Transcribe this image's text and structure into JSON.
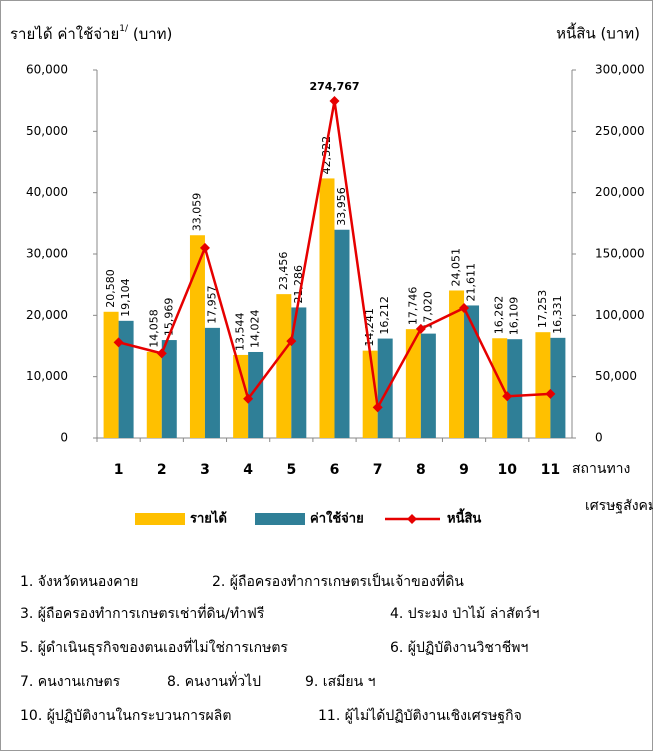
{
  "chart_data": {
    "type": "bar",
    "y_label": "รายได้ ค่าใช้จ่าย",
    "y_label_note": "1/",
    "y_label_unit": "(บาท)",
    "y2_label": "หนี้สิน (บาท)",
    "x_label": [
      "สถานทาง",
      "เศรษฐสังคม"
    ],
    "categories": [
      "1",
      "2",
      "3",
      "4",
      "5",
      "6",
      "7",
      "8",
      "9",
      "10",
      "11"
    ],
    "series": [
      {
        "name": "รายได้",
        "color": "#ffc000",
        "label_color": "#b0642a",
        "values": [
          20580,
          14058,
          33059,
          13544,
          23456,
          42322,
          14241,
          17746,
          24051,
          16262,
          17253
        ],
        "value_labels": [
          "20,580",
          "14,058",
          "33,059",
          "13,544",
          "23,456",
          "42,322",
          "14,241",
          "17,746",
          "24,051",
          "16,262",
          "17,253"
        ]
      },
      {
        "name": "ค่าใช้จ่าย",
        "color": "#2f7f97",
        "label_color": "#2f7f97",
        "values": [
          19104,
          15969,
          17957,
          14024,
          21286,
          33956,
          16212,
          17020,
          21611,
          16109,
          16331
        ],
        "value_labels": [
          "19,104",
          "15,969",
          "17,957",
          "14,024",
          "21,286",
          "33,956",
          "16,212",
          "17,020",
          "21,611",
          "16,109",
          "16,331"
        ]
      },
      {
        "name": "หนี้สิน",
        "color": "#e60000",
        "type": "line",
        "axis": "y2",
        "values": [
          78000,
          69000,
          155000,
          32000,
          79000,
          274767,
          25000,
          89000,
          106000,
          34000,
          36000
        ],
        "value_labels": [
          null,
          null,
          null,
          null,
          null,
          "274,767",
          null,
          null,
          null,
          null,
          null
        ]
      }
    ],
    "ylim": [
      0,
      60000
    ],
    "yticks": [
      0,
      {
        "value": 10000,
        "label": "10,000"
      },
      {
        "value": 20000,
        "label": "20,000"
      },
      {
        "value": 30000,
        "label": "30,000"
      },
      {
        "value": 40000,
        "label": "40,000"
      },
      {
        "value": 50000,
        "label": "50,000"
      },
      {
        "value": 60000,
        "label": "60,000"
      }
    ],
    "y2lim": [
      0,
      300000
    ],
    "y2ticks": [
      0,
      {
        "value": 50000,
        "label": "50,000"
      },
      {
        "value": 100000,
        "label": "100,000"
      },
      {
        "value": 150000,
        "label": "150,000"
      },
      {
        "value": 200000,
        "label": "200,000"
      },
      {
        "value": 250000,
        "label": "250,000"
      },
      {
        "value": 300000,
        "label": "300,000"
      }
    ],
    "grid": false,
    "legend": "bottom"
  },
  "notes": [
    [
      "1. จังหวัดหนองคาย",
      "2. ผู้ถือครองทำการเกษตรเป็นเจ้าของที่ดิน"
    ],
    [
      "3. ผู้ถือครองทำการเกษตรเช่าที่ดิน/ทำฟรี",
      "4. ประมง ป่าไม้ ล่าสัตว์ฯ"
    ],
    [
      "5. ผู้ดำเนินธุรกิจของตนเองที่ไม่ใช่การเกษตร",
      "6. ผู้ปฏิบัติงานวิชาชีพฯ"
    ],
    [
      "7. คนงานเกษตร",
      "8. คนงานทั่วไป",
      "9. เสมียน ฯ"
    ],
    [
      "10. ผู้ปฏิบัติงานในกระบวนการผลิต",
      "11. ผู้ไม่ได้ปฏิบัติงานเชิงเศรษฐกิจ"
    ]
  ]
}
